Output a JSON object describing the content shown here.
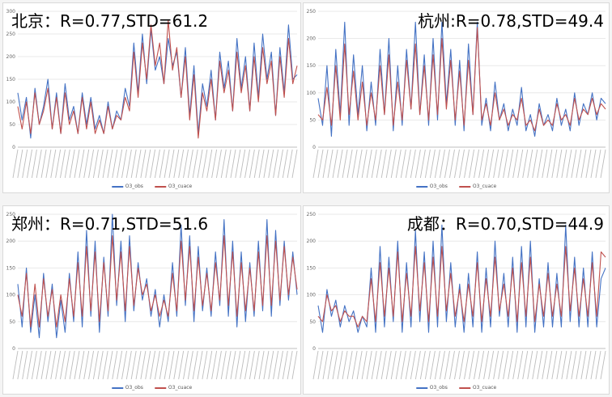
{
  "colors": {
    "obs": "#4472c4",
    "cuace": "#c0504d",
    "grid": "#e3e3e3",
    "axis": "#bfbfbf"
  },
  "chart_data": [
    {
      "type": "line",
      "title": "北京：R=0.77,STD=61.2",
      "ylim": [
        0,
        300
      ],
      "yticks": [
        0,
        50,
        100,
        150,
        200,
        250,
        300
      ],
      "xlabel": "",
      "ylabel": "",
      "legend": [
        "O3_obs",
        "O3_cuace"
      ],
      "series": [
        {
          "name": "O3_obs",
          "values": [
            120,
            60,
            110,
            20,
            130,
            50,
            90,
            150,
            40,
            120,
            30,
            140,
            60,
            90,
            30,
            120,
            50,
            110,
            40,
            70,
            30,
            100,
            40,
            80,
            60,
            130,
            90,
            230,
            120,
            250,
            140,
            260,
            170,
            200,
            140,
            240,
            180,
            210,
            110,
            220,
            70,
            180,
            30,
            140,
            90,
            170,
            60,
            210,
            130,
            190,
            80,
            240,
            130,
            200,
            80,
            230,
            110,
            250,
            150,
            210,
            70,
            220,
            120,
            270,
            150,
            160
          ]
        },
        {
          "name": "O3_cuace",
          "values": [
            90,
            40,
            100,
            30,
            120,
            50,
            80,
            130,
            40,
            110,
            30,
            120,
            50,
            80,
            30,
            110,
            40,
            100,
            30,
            60,
            30,
            90,
            40,
            70,
            60,
            110,
            80,
            210,
            110,
            230,
            150,
            270,
            180,
            230,
            140,
            280,
            170,
            220,
            110,
            200,
            60,
            160,
            20,
            120,
            80,
            150,
            60,
            190,
            120,
            170,
            80,
            210,
            120,
            180,
            80,
            200,
            100,
            220,
            140,
            190,
            70,
            200,
            110,
            240,
            140,
            180
          ]
        }
      ]
    },
    {
      "type": "line",
      "title": "杭州:R=0.78,STD=49.4",
      "ylim": [
        0,
        250
      ],
      "yticks": [
        0,
        50,
        100,
        150,
        200,
        250
      ],
      "xlabel": "",
      "ylabel": "",
      "legend": [
        "O3_obs",
        "O3_cuace"
      ],
      "series": [
        {
          "name": "O3_obs",
          "values": [
            90,
            40,
            150,
            20,
            180,
            60,
            230,
            40,
            170,
            60,
            150,
            30,
            120,
            40,
            180,
            60,
            200,
            30,
            150,
            40,
            180,
            70,
            230,
            60,
            170,
            40,
            200,
            50,
            230,
            80,
            180,
            40,
            160,
            30,
            190,
            60,
            230,
            40,
            90,
            30,
            120,
            50,
            80,
            30,
            70,
            40,
            110,
            30,
            60,
            20,
            80,
            40,
            60,
            30,
            90,
            40,
            70,
            30,
            100,
            40,
            80,
            60,
            100,
            50,
            90,
            80
          ]
        },
        {
          "name": "O3_cuace",
          "values": [
            60,
            50,
            110,
            40,
            150,
            50,
            190,
            60,
            140,
            50,
            120,
            40,
            100,
            50,
            150,
            60,
            170,
            40,
            120,
            50,
            160,
            70,
            190,
            60,
            150,
            50,
            170,
            60,
            200,
            70,
            160,
            50,
            140,
            40,
            160,
            60,
            220,
            50,
            80,
            40,
            100,
            50,
            70,
            40,
            60,
            50,
            90,
            40,
            50,
            30,
            70,
            40,
            50,
            40,
            80,
            50,
            60,
            40,
            90,
            50,
            70,
            60,
            90,
            60,
            80,
            70
          ]
        }
      ]
    },
    {
      "type": "line",
      "title": "郑州：R=0.71,STD=51.6",
      "ylim": [
        0,
        250
      ],
      "yticks": [
        0,
        50,
        100,
        150,
        200,
        250
      ],
      "xlabel": "",
      "ylabel": "",
      "legend": [
        "O3_obs",
        "O3_cuace"
      ],
      "series": [
        {
          "name": "O3_obs",
          "values": [
            120,
            40,
            150,
            30,
            100,
            20,
            140,
            50,
            120,
            20,
            90,
            30,
            140,
            50,
            180,
            40,
            220,
            60,
            200,
            30,
            170,
            60,
            250,
            80,
            200,
            50,
            210,
            70,
            160,
            90,
            130,
            60,
            110,
            40,
            100,
            50,
            160,
            60,
            230,
            80,
            210,
            50,
            190,
            70,
            150,
            60,
            180,
            80,
            240,
            60,
            200,
            40,
            180,
            50,
            160,
            60,
            200,
            70,
            240,
            60,
            220,
            80,
            200,
            90,
            180,
            100
          ]
        },
        {
          "name": "O3_cuace",
          "values": [
            100,
            60,
            140,
            40,
            120,
            40,
            130,
            60,
            110,
            40,
            100,
            50,
            130,
            60,
            160,
            60,
            190,
            70,
            180,
            50,
            160,
            70,
            210,
            90,
            180,
            70,
            190,
            80,
            150,
            100,
            120,
            70,
            100,
            60,
            90,
            60,
            140,
            70,
            200,
            90,
            190,
            70,
            170,
            80,
            140,
            70,
            160,
            90,
            210,
            80,
            180,
            60,
            160,
            70,
            150,
            70,
            180,
            80,
            210,
            80,
            200,
            90,
            190,
            100,
            170,
            110
          ]
        }
      ]
    },
    {
      "type": "line",
      "title": "成都：R=0.70,STD=44.9",
      "ylim": [
        0,
        250
      ],
      "yticks": [
        0,
        50,
        100,
        150,
        200,
        250
      ],
      "xlabel": "",
      "ylabel": "",
      "legend": [
        "O3_obs",
        "O3_cuace"
      ],
      "series": [
        {
          "name": "O3_obs",
          "values": [
            80,
            30,
            110,
            60,
            90,
            40,
            80,
            50,
            70,
            30,
            60,
            40,
            150,
            30,
            190,
            40,
            170,
            50,
            200,
            30,
            160,
            40,
            220,
            50,
            180,
            30,
            200,
            40,
            230,
            50,
            160,
            40,
            120,
            30,
            140,
            40,
            180,
            30,
            150,
            40,
            200,
            60,
            140,
            40,
            170,
            30,
            190,
            40,
            200,
            30,
            130,
            40,
            160,
            40,
            140,
            40,
            230,
            50,
            170,
            40,
            150,
            40,
            180,
            40,
            130,
            150
          ]
        },
        {
          "name": "O3_cuace",
          "values": [
            60,
            50,
            100,
            70,
            80,
            50,
            70,
            60,
            60,
            40,
            60,
            50,
            130,
            50,
            160,
            60,
            150,
            60,
            180,
            50,
            140,
            60,
            190,
            70,
            160,
            50,
            170,
            60,
            190,
            70,
            140,
            60,
            110,
            50,
            120,
            60,
            160,
            50,
            130,
            60,
            170,
            70,
            120,
            60,
            150,
            50,
            160,
            60,
            170,
            50,
            120,
            60,
            140,
            60,
            120,
            60,
            190,
            70,
            150,
            60,
            130,
            60,
            160,
            60,
            180,
            170
          ]
        }
      ]
    }
  ]
}
